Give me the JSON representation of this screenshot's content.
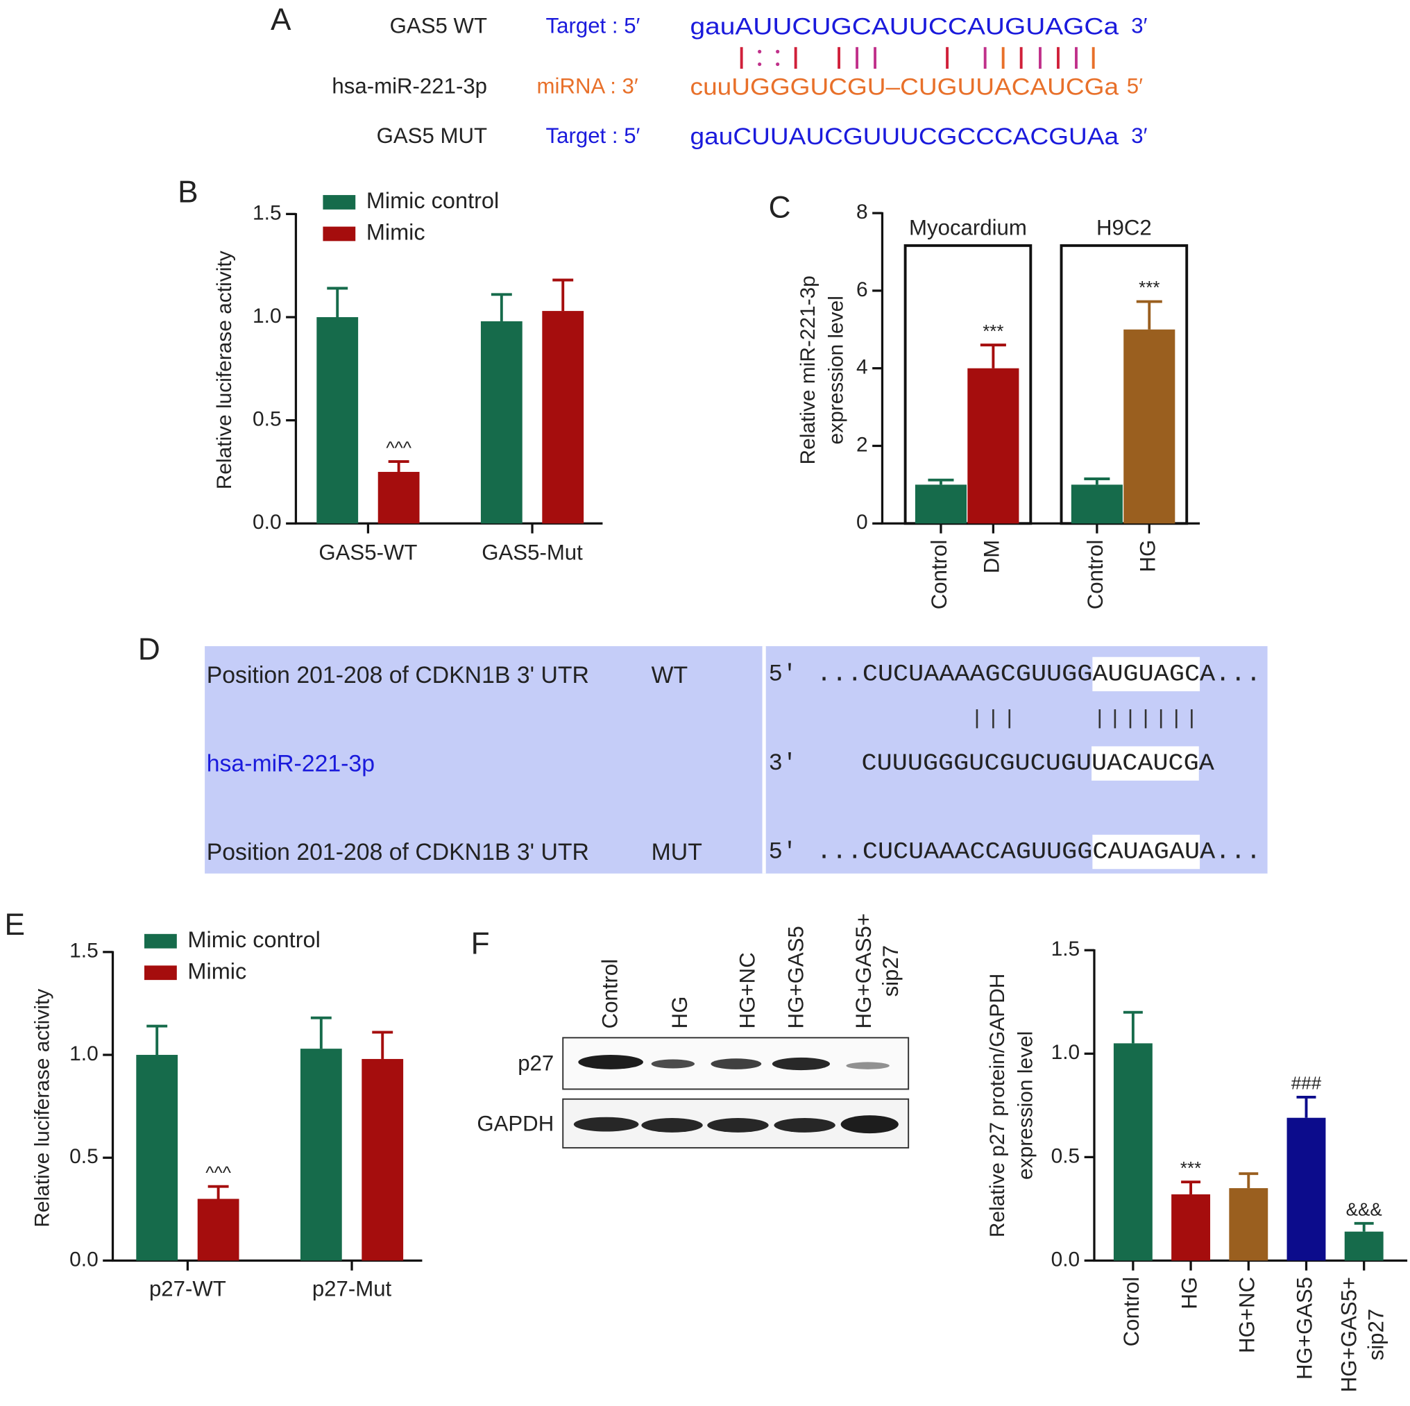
{
  "panel_labels": [
    "A",
    "B",
    "C",
    "D",
    "E",
    "F"
  ],
  "sequence_alignment": {
    "rows": [
      {
        "name": "GAS5 WT",
        "role": "Target : 5′",
        "sequence": "gauAUUCUGCAUUCCAUGUAGCa",
        "end": "3′"
      },
      {
        "name": "hsa-miR-221-3p",
        "role": "miRNA : 3′",
        "sequence": "cuuUGGGUCGU–CUGUUACAUCGa",
        "end": "5′"
      },
      {
        "name": "GAS5 MUT",
        "role": "Target : 5′",
        "sequence": "gauCUUAUCGUUUCGCCCACGUAa",
        "end": "3′"
      }
    ]
  },
  "utr_alignment": {
    "rows": [
      {
        "name": "Position 201-208 of CDKN1B 3' UTR",
        "tag": "WT",
        "end": "5'",
        "sequence": "...CUCUAAAAGCGUUGGAUGUAGCA..."
      },
      {
        "name": "hsa-miR-221-3p",
        "end": "3'",
        "sequence": "CUUUGGGUCGUCUGUUACAUCGA"
      },
      {
        "name": "Position 201-208 of CDKN1B 3' UTR",
        "tag": "MUT",
        "end": "5'",
        "sequence": "...CUCUAAACCAGUUGGCAUAGAUA..."
      }
    ]
  },
  "blot": {
    "lanes": [
      "Control",
      "HG",
      "HG+NC",
      "HG+GAS5",
      [
        "HG+GAS5+",
        "sip27"
      ]
    ],
    "rows": [
      "p27",
      "GAPDH"
    ]
  },
  "chart_data": [
    {
      "type": "bar",
      "ylabel": "Relative luciferase activity",
      "categories": [
        "GAS5-WT",
        "GAS5-Mut"
      ],
      "series": [
        {
          "name": "Mimic control",
          "color": "#166b4b",
          "values": [
            1.0,
            0.98
          ],
          "errors": [
            0.14,
            0.13
          ],
          "markers": [
            null,
            null
          ]
        },
        {
          "name": "Mimic",
          "color": "#a50d0d",
          "values": [
            0.25,
            1.03
          ],
          "errors": [
            0.05,
            0.15
          ],
          "markers": [
            "^^^",
            null
          ]
        }
      ],
      "ylim": [
        0,
        1.5
      ],
      "yticks": [
        {
          "value": 0,
          "label": "0.0"
        },
        0.5,
        {
          "value": 1,
          "label": "1.0"
        },
        1.5
      ]
    },
    {
      "type": "bar",
      "ylabel": [
        "Relative miR-221-3p",
        "expression level"
      ],
      "groups": [
        "Myocardium",
        "H9C2"
      ],
      "categories": [
        "Control",
        "DM",
        "Control",
        "HG"
      ],
      "values": [
        1.0,
        4.0,
        1.0,
        5.0
      ],
      "errors": [
        0.12,
        0.6,
        0.15,
        0.72
      ],
      "markers": [
        null,
        "***",
        null,
        "***"
      ],
      "colors": [
        "#166b4b",
        "#a50d0d",
        "#166b4b",
        "#9a5f1f"
      ],
      "ylim": [
        0,
        8
      ],
      "yticks": [
        0,
        2,
        4,
        6,
        8
      ]
    },
    {
      "type": "bar",
      "ylabel": "Relative luciferase activity",
      "categories": [
        "p27-WT",
        "p27-Mut"
      ],
      "series": [
        {
          "name": "Mimic control",
          "color": "#166b4b",
          "values": [
            1.0,
            1.03
          ],
          "errors": [
            0.14,
            0.15
          ],
          "markers": [
            null,
            null
          ]
        },
        {
          "name": "Mimic",
          "color": "#a50d0d",
          "values": [
            0.3,
            0.98
          ],
          "errors": [
            0.06,
            0.13
          ],
          "markers": [
            "^^^",
            null
          ]
        }
      ],
      "ylim": [
        0,
        1.5
      ],
      "yticks": [
        {
          "value": 0,
          "label": "0.0"
        },
        0.5,
        {
          "value": 1,
          "label": "1.0"
        },
        1.5
      ]
    },
    {
      "type": "bar",
      "ylabel": [
        "Relative p27 protein/GAPDH",
        "expression level"
      ],
      "categories": [
        "Control",
        "HG",
        "HG+NC",
        "HG+GAS5",
        [
          "HG+GAS5+",
          "sip27"
        ]
      ],
      "values": [
        1.05,
        0.32,
        0.35,
        0.69,
        0.14
      ],
      "errors": [
        0.15,
        0.06,
        0.07,
        0.1,
        0.04
      ],
      "markers": [
        null,
        "***",
        null,
        "###",
        "&&&"
      ],
      "colors": [
        "#166b4b",
        "#a50d0d",
        "#9a5f1f",
        "#0c0c8c",
        "#166b4b"
      ],
      "ylim": [
        0,
        1.5
      ],
      "yticks": [
        {
          "value": 0,
          "label": "0.0"
        },
        0.5,
        {
          "value": 1,
          "label": "1.0"
        },
        1.5
      ]
    }
  ]
}
